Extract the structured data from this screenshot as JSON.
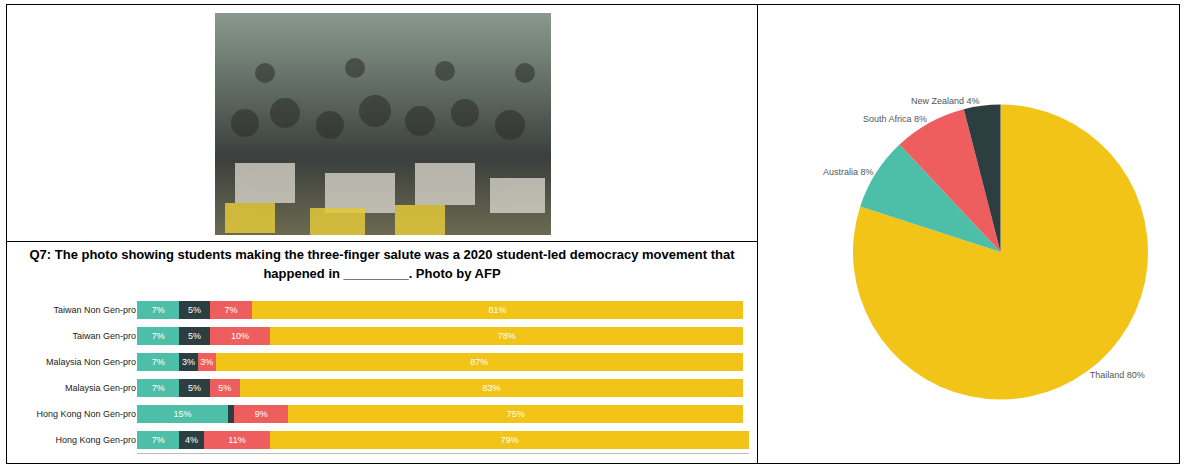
{
  "question": "Q7: The photo showing students making the three-finger salute was a 2020 student-led democracy movement that happened in _________. Photo by AFP",
  "chart_data": [
    {
      "type": "bar",
      "orientation": "horizontal",
      "stacked": true,
      "data_labels": true,
      "tick_labels": "y",
      "categories": [
        "Taiwan Non Gen-pro",
        "Taiwan Gen-pro",
        "Malaysia Non Gen-pro",
        "Malaysia Gen-pro",
        "Hong Kong Non Gen-pro",
        "Hong Kong Gen-pro"
      ],
      "xlim": [
        0,
        101
      ],
      "xticks": [],
      "series": [
        {
          "color": "#4dbfa9",
          "values": [
            7,
            7,
            7,
            7,
            15,
            7
          ],
          "value_labels": [
            "7%",
            "7%",
            "7%",
            "7%",
            "15%",
            "7%"
          ]
        },
        {
          "color": "#2d3e40",
          "values": [
            5,
            5,
            3,
            5,
            1,
            4
          ],
          "value_labels": [
            "5%",
            "5%",
            "3%",
            "5%",
            null,
            "4%"
          ]
        },
        {
          "color": "#ee5e5e",
          "values": [
            7,
            10,
            3,
            5,
            9,
            11
          ],
          "value_labels": [
            "7%",
            "10%",
            "3%",
            "5%",
            "9%",
            "11%"
          ]
        },
        {
          "color": "#f2c417",
          "values": [
            81,
            78,
            87,
            83,
            75,
            79
          ],
          "value_labels": [
            "81%",
            "78%",
            "87%",
            "83%",
            "75%",
            "79%"
          ]
        }
      ]
    },
    {
      "type": "pie",
      "categories": [
        "Thailand",
        "Australia",
        "South Africa",
        "New Zealand"
      ],
      "values": [
        80,
        8,
        8,
        4
      ],
      "value_labels": [
        "Thailand 80%",
        "Australia 8%",
        "South Africa 8%",
        "New Zealand 4%"
      ],
      "colors": [
        "#f2c417",
        "#4dbfa9",
        "#ee5e5e",
        "#2d3e40"
      ]
    }
  ]
}
